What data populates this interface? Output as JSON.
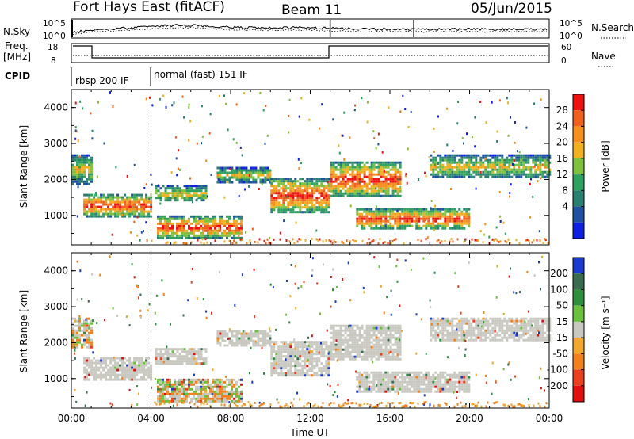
{
  "header": {
    "station": "Fort Hays East (fitACF)",
    "beam": "Beam 11",
    "date": "05/Jun/2015"
  },
  "top_panel": {
    "left_label": "N.Sky",
    "left_ticks": [
      "10^5",
      "10^0"
    ],
    "right_ticks": [
      "10^5",
      "10^0"
    ],
    "right_label": "N.Search"
  },
  "freq_panel": {
    "left_label_1": "Freq.",
    "left_label_2": "[MHz]",
    "left_ticks": [
      "18",
      "8"
    ],
    "right_ticks": [
      "60",
      "0"
    ],
    "right_label": "Nave"
  },
  "cpid": {
    "label": "CPID",
    "segments": [
      {
        "text": "rbsp 200 IF",
        "start_hour": 0
      },
      {
        "text": "normal (fast) 151 IF",
        "start_hour": 4
      }
    ]
  },
  "chart_data": [
    {
      "type": "heatmap",
      "name": "power",
      "ylabel": "Slant Range [km]",
      "xlabel": "",
      "yticks": [
        "4000",
        "3000",
        "2000",
        "1000"
      ],
      "ylim": [
        180,
        4500
      ],
      "xlim": [
        0,
        24
      ],
      "colorbar": {
        "label": "Power [dB]",
        "ticks": [
          "28",
          "24",
          "20",
          "16",
          "12",
          "8",
          "4"
        ],
        "colors": [
          "#ee1111",
          "#f06020",
          "#f59020",
          "#f0b020",
          "#80c040",
          "#30a060",
          "#2a8070",
          "#2050a0",
          "#1020e0"
        ]
      },
      "regions": [
        {
          "t": [
            0.0,
            1.0
          ],
          "r": [
            1900,
            2700
          ],
          "level": "mid"
        },
        {
          "t": [
            0.6,
            4.0
          ],
          "r": [
            1000,
            1600
          ],
          "level": "high"
        },
        {
          "t": [
            4.2,
            6.8
          ],
          "r": [
            1400,
            1850
          ],
          "level": "mid"
        },
        {
          "t": [
            4.3,
            8.5
          ],
          "r": [
            400,
            1000
          ],
          "level": "high"
        },
        {
          "t": [
            7.3,
            10.0
          ],
          "r": [
            1950,
            2350
          ],
          "level": "mid"
        },
        {
          "t": [
            10.0,
            12.9
          ],
          "r": [
            1100,
            2050
          ],
          "level": "high"
        },
        {
          "t": [
            13.0,
            16.5
          ],
          "r": [
            1550,
            2500
          ],
          "level": "high"
        },
        {
          "t": [
            14.3,
            20.0
          ],
          "r": [
            650,
            1200
          ],
          "level": "high"
        },
        {
          "t": [
            18.0,
            24.0
          ],
          "r": [
            2050,
            2700
          ],
          "level": "mid"
        }
      ]
    },
    {
      "type": "heatmap",
      "name": "velocity",
      "ylabel": "Slant Range [km]",
      "xlabel": "Time UT",
      "yticks": [
        "4000",
        "3000",
        "2000",
        "1000"
      ],
      "xticks": [
        "00:00",
        "04:00",
        "08:00",
        "12:00",
        "16:00",
        "20:00",
        "00:00"
      ],
      "ylim": [
        180,
        4500
      ],
      "xlim": [
        0,
        24
      ],
      "colorbar": {
        "label": "Velocity [m s⁻¹]",
        "ticks": [
          "200",
          "100",
          "50",
          "15",
          "-15",
          "-50",
          "-100",
          "-200"
        ],
        "colors": [
          "#1a3ad0",
          "#3a6a50",
          "#2f8f3f",
          "#6cc040",
          "#c8c8c0",
          "#f0a830",
          "#f08020",
          "#e84020",
          "#e01010"
        ]
      },
      "regions": [
        {
          "t": [
            0.0,
            1.0
          ],
          "r": [
            1900,
            2700
          ],
          "level": "mixed"
        },
        {
          "t": [
            0.6,
            4.0
          ],
          "r": [
            1000,
            1600
          ],
          "level": "ground"
        },
        {
          "t": [
            4.2,
            6.8
          ],
          "r": [
            1400,
            1850
          ],
          "level": "ground"
        },
        {
          "t": [
            4.3,
            8.5
          ],
          "r": [
            400,
            1000
          ],
          "level": "mixed"
        },
        {
          "t": [
            7.3,
            10.0
          ],
          "r": [
            1950,
            2350
          ],
          "level": "ground"
        },
        {
          "t": [
            10.0,
            12.9
          ],
          "r": [
            1100,
            2050
          ],
          "level": "ground"
        },
        {
          "t": [
            13.0,
            16.5
          ],
          "r": [
            1550,
            2500
          ],
          "level": "ground"
        },
        {
          "t": [
            14.3,
            20.0
          ],
          "r": [
            650,
            1200
          ],
          "level": "ground"
        },
        {
          "t": [
            18.0,
            24.0
          ],
          "r": [
            2050,
            2700
          ],
          "level": "ground"
        }
      ]
    }
  ]
}
